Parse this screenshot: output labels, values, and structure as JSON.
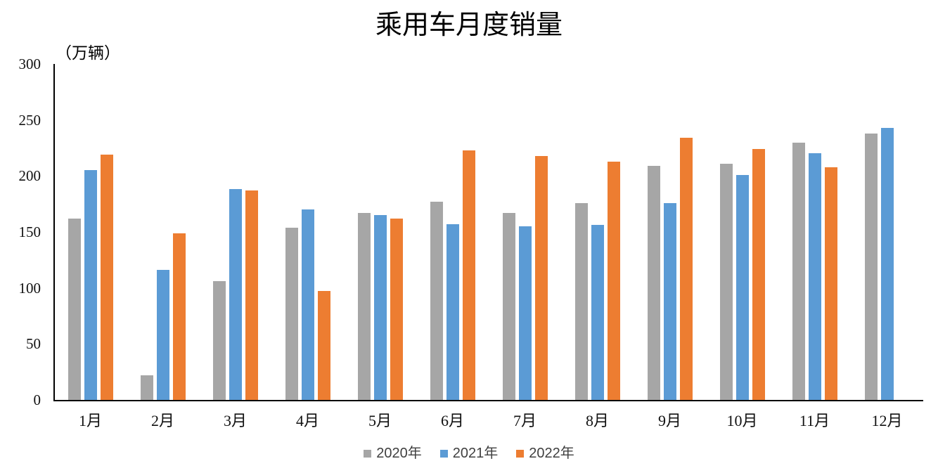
{
  "chart_data": {
    "type": "bar",
    "title": "乘用车月度销量",
    "unit_label": "（万辆）",
    "categories": [
      "1月",
      "2月",
      "3月",
      "4月",
      "5月",
      "6月",
      "7月",
      "8月",
      "9月",
      "10月",
      "11月",
      "12月"
    ],
    "series": [
      {
        "name": "2020年",
        "color": "#A6A6A6",
        "values": [
          162,
          22,
          106,
          154,
          167,
          177,
          167,
          176,
          209,
          211,
          230,
          238
        ]
      },
      {
        "name": "2021年",
        "color": "#5B9BD5",
        "values": [
          205,
          116,
          188,
          170,
          165,
          157,
          155,
          156,
          176,
          201,
          220,
          243
        ]
      },
      {
        "name": "2022年",
        "color": "#ED7D31",
        "values": [
          219,
          149,
          187,
          97,
          162,
          223,
          218,
          213,
          234,
          224,
          208,
          null
        ]
      }
    ],
    "ylim": [
      0,
      300
    ],
    "yticks": [
      0,
      50,
      100,
      150,
      200,
      250,
      300
    ],
    "grid": false,
    "legend_position": "bottom",
    "axis_color": "#000000"
  }
}
